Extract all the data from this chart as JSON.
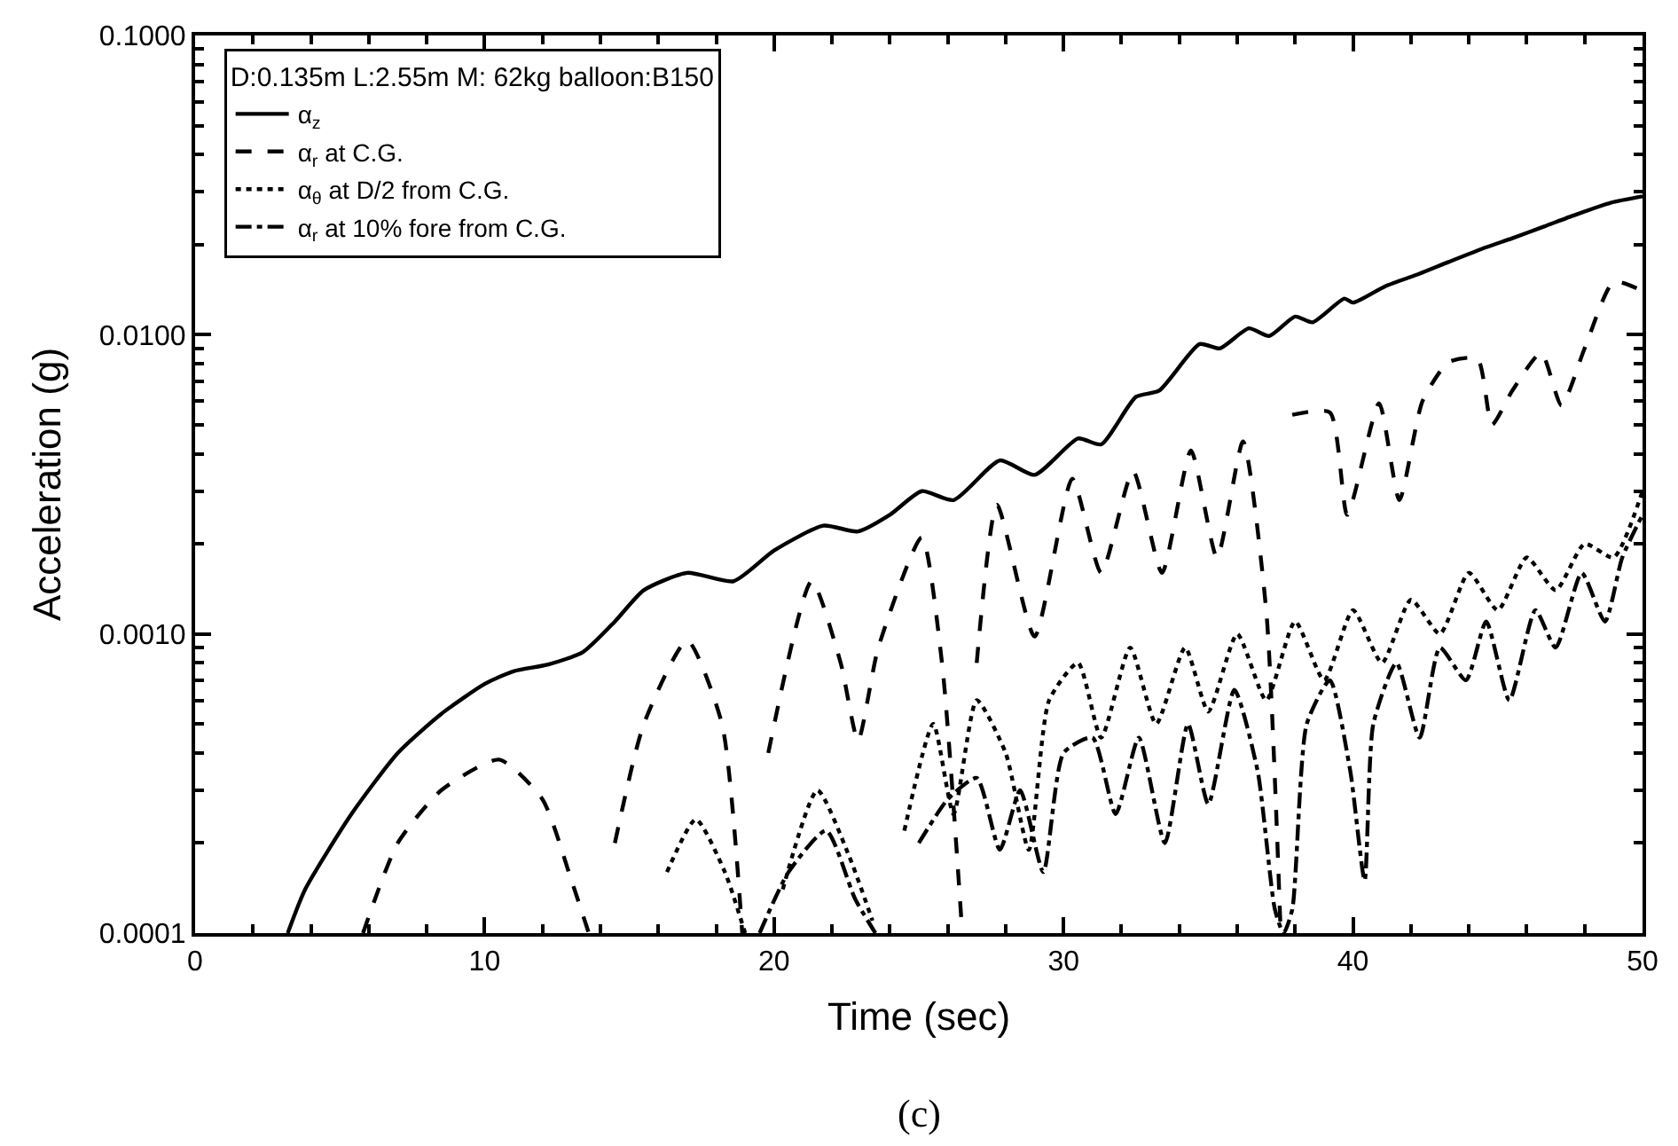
{
  "chart_data": {
    "type": "line",
    "xlabel": "Time (sec)",
    "ylabel": "Acceleration (g)",
    "legend_title": "D:0.135m L:2.55m M: 62kg balloon:B150",
    "annotations": [
      "(c)"
    ],
    "xlim": [
      0,
      50
    ],
    "xticks": [
      0,
      10,
      20,
      30,
      40,
      50
    ],
    "ylim": [
      0.0001,
      0.1
    ],
    "log": "y",
    "yticks": [
      {
        "value": 0.0001,
        "label": "0.0001"
      },
      {
        "value": 0.001,
        "label": "0.0010"
      },
      {
        "value": 0.01,
        "label": "0.0100"
      },
      {
        "value": 0.1,
        "label": "0.1000"
      }
    ],
    "legend": "top left",
    "marker": "none",
    "series": [
      {
        "name": "α$_{z}$",
        "color": "#000000",
        "line_style": "solid",
        "x": [
          3.2,
          3.8,
          5.4,
          7.0,
          8.5,
          10.0,
          11.0,
          12.2,
          13.4,
          14.5,
          15.5,
          17.0,
          18.6,
          20.0,
          21.7,
          22.9,
          24.0,
          25.1,
          26.2,
          27.8,
          29.0,
          30.5,
          31.3,
          32.5,
          33.3,
          34.7,
          35.4,
          36.4,
          37.1,
          38.0,
          38.6,
          39.7,
          40.0,
          41.1,
          42.3,
          43.3,
          44.6,
          45.5,
          46.6,
          47.6,
          48.9,
          50.0
        ],
        "values": [
          0.0001,
          0.00014,
          0.00025,
          0.0004,
          0.00054,
          0.00068,
          0.00075,
          0.00079,
          0.00087,
          0.0011,
          0.0014,
          0.0016,
          0.0015,
          0.0019,
          0.0023,
          0.0022,
          0.0025,
          0.003,
          0.0028,
          0.0038,
          0.0034,
          0.0045,
          0.0043,
          0.0062,
          0.0065,
          0.0093,
          0.009,
          0.0105,
          0.0099,
          0.0115,
          0.011,
          0.0132,
          0.0128,
          0.0145,
          0.016,
          0.0175,
          0.0196,
          0.021,
          0.023,
          0.025,
          0.0276,
          0.029
        ]
      },
      {
        "name": "α$_{r}$ at C.G.",
        "color": "#000000",
        "line_style": "dashed",
        "x": [
          5.8,
          7.0,
          8.5,
          10.5,
          12.0,
          13.0,
          13.6,
          13.7,
          14.5,
          15.5,
          17.0,
          18.2,
          18.9,
          19.0,
          19.8,
          21.3,
          22.3,
          22.9,
          23.6,
          25.1,
          25.8,
          26.5,
          26.6,
          27.0,
          27.7,
          29.0,
          30.3,
          31.3,
          32.4,
          33.4,
          34.4,
          35.3,
          36.2,
          37.0,
          37.5,
          37.6,
          37.9,
          39.2,
          39.8,
          40.9,
          41.6,
          42.4,
          43.3,
          44.3,
          44.8,
          45.5,
          46.5,
          47.2,
          48.0,
          49.0,
          50.0
        ],
        "values": [
          0.0001,
          0.0002,
          0.0003,
          0.00038,
          0.00028,
          0.00015,
          0.0001,
          null,
          0.0002,
          0.0005,
          0.00095,
          0.0005,
          0.0001,
          null,
          0.0004,
          0.0015,
          0.0008,
          0.00044,
          0.0009,
          0.0021,
          0.0008,
          0.0001,
          null,
          0.0008,
          0.0027,
          0.00098,
          0.0033,
          0.0016,
          0.0035,
          0.0016,
          0.0041,
          0.0018,
          0.0044,
          0.0012,
          0.0001,
          null,
          0.0054,
          0.0055,
          0.0025,
          0.0059,
          0.0028,
          0.006,
          0.0081,
          0.0083,
          0.005,
          0.0065,
          0.0087,
          0.0058,
          0.009,
          0.015,
          0.014
        ]
      },
      {
        "name": "α$_{θ}$ at D/2 from C.G.",
        "color": "#000000",
        "line_style": "dotted",
        "x": [
          16.3,
          17.3,
          18.3,
          19.0,
          19.4,
          20.3,
          21.5,
          22.6,
          23.4,
          23.8,
          24.5,
          25.5,
          26.2,
          27.0,
          28.0,
          28.8,
          29.5,
          30.5,
          31.3,
          32.3,
          33.2,
          34.2,
          35.0,
          36.0,
          37.0,
          38.0,
          39.0,
          40.0,
          41.0,
          42.0,
          43.0,
          44.0,
          45.0,
          46.0,
          47.0,
          48.0,
          49.0,
          50.0
        ],
        "values": [
          0.00016,
          0.00024,
          0.00016,
          0.0001,
          null,
          0.00014,
          0.0003,
          0.00018,
          0.00011,
          null,
          0.00022,
          0.0005,
          0.00025,
          0.0006,
          0.0004,
          0.00019,
          0.0006,
          0.0008,
          0.00045,
          0.0009,
          0.0005,
          0.0009,
          0.00055,
          0.001,
          0.0006,
          0.0011,
          0.0007,
          0.0012,
          0.0008,
          0.0013,
          0.001,
          0.0016,
          0.0012,
          0.0018,
          0.0014,
          0.002,
          0.0018,
          0.003
        ]
      },
      {
        "name": "α$_{r}$ at 10% fore from C.G.",
        "color": "#000000",
        "line_style": "dashdot",
        "x": [
          19.5,
          20.5,
          21.8,
          22.8,
          23.5,
          24.0,
          25.0,
          26.0,
          27.0,
          27.8,
          28.5,
          29.3,
          30.0,
          31.0,
          31.8,
          32.6,
          33.5,
          34.3,
          35.0,
          35.9,
          36.7,
          37.3,
          37.6,
          37.9,
          38.4,
          39.2,
          39.9,
          40.4,
          40.7,
          41.5,
          42.3,
          43.0,
          43.9,
          44.6,
          45.4,
          46.3,
          47.0,
          47.9,
          48.7,
          49.3,
          50.0
        ],
        "values": [
          0.0001,
          0.00016,
          0.00022,
          0.00013,
          0.0001,
          null,
          0.0002,
          0.00028,
          0.00033,
          0.00019,
          0.0003,
          0.00016,
          0.0004,
          0.00045,
          0.00025,
          0.00045,
          0.0002,
          0.0005,
          0.00027,
          0.00065,
          0.00035,
          0.00012,
          0.0001,
          0.00012,
          0.0005,
          0.0007,
          0.00035,
          0.00015,
          0.0005,
          0.0008,
          0.00045,
          0.0009,
          0.0007,
          0.0011,
          0.0006,
          0.0012,
          0.0009,
          0.0016,
          0.0011,
          0.0018,
          0.0025
        ]
      }
    ]
  }
}
